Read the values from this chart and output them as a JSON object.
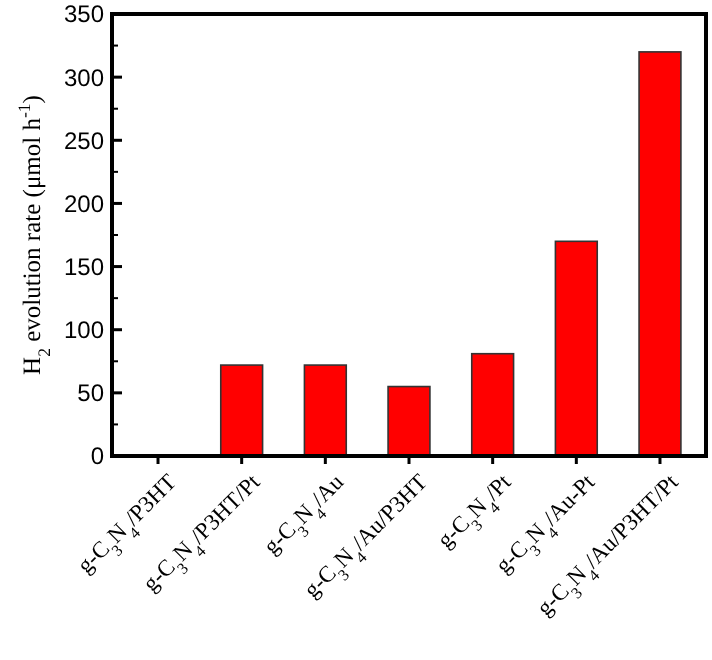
{
  "chart_data": {
    "type": "bar",
    "ylabel": "H$_{2}$ evolution rate (μmol h$^{-1}$)",
    "categories": [
      "g-C$_{3}$N$_{4}$/P3HT",
      "g-C$_{3}$N$_{4}$/P3HT/Pt",
      "g-C$_{3}$N$_{4}$/Au",
      "g-C$_{3}$N$_{4}$/Au/P3HT",
      "g-C$_{3}$N$_{4}$/Pt",
      "g-C$_{3}$N$_{4}$/Au-Pt",
      "g-C$_{3}$N$_{4}$/Au/P3HT/Pt"
    ],
    "values": [
      0,
      72,
      72,
      55,
      81,
      170,
      320
    ],
    "color": "#ff0000",
    "ylim": [
      0,
      350
    ],
    "yticks": [
      0,
      50,
      100,
      150,
      200,
      250,
      300,
      350
    ],
    "grid": false
  }
}
